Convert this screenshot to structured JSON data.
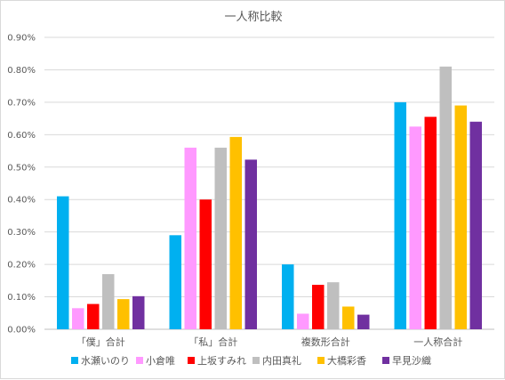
{
  "chart_data": {
    "type": "bar",
    "title": "一人称比較",
    "categories": [
      "「僕」合計",
      "「私」合計",
      "複数形合計",
      "一人称合計"
    ],
    "ylim": [
      0,
      0.009
    ],
    "yticks": [
      "0.00%",
      "0.10%",
      "0.20%",
      "0.30%",
      "0.40%",
      "0.50%",
      "0.60%",
      "0.70%",
      "0.80%",
      "0.90%"
    ],
    "grid": true,
    "legend": "bottom",
    "series": [
      {
        "name": "水瀬いのり",
        "color": "#00b0f0",
        "values": [
          0.0041,
          0.0029,
          0.002,
          0.007
        ]
      },
      {
        "name": "小倉唯",
        "color": "#ff99ff",
        "values": [
          0.00065,
          0.0056,
          0.00048,
          0.00625
        ]
      },
      {
        "name": "上坂すみれ",
        "color": "#ff0000",
        "values": [
          0.00078,
          0.004,
          0.00137,
          0.00655
        ]
      },
      {
        "name": "内田真礼",
        "color": "#bfbfbf",
        "values": [
          0.0017,
          0.0056,
          0.00145,
          0.0081
        ]
      },
      {
        "name": "大橋彩香",
        "color": "#ffc000",
        "values": [
          0.00093,
          0.00593,
          0.0007,
          0.0069
        ]
      },
      {
        "name": "早見沙織",
        "color": "#7030a0",
        "values": [
          0.00102,
          0.00523,
          0.00045,
          0.0064
        ]
      }
    ]
  }
}
